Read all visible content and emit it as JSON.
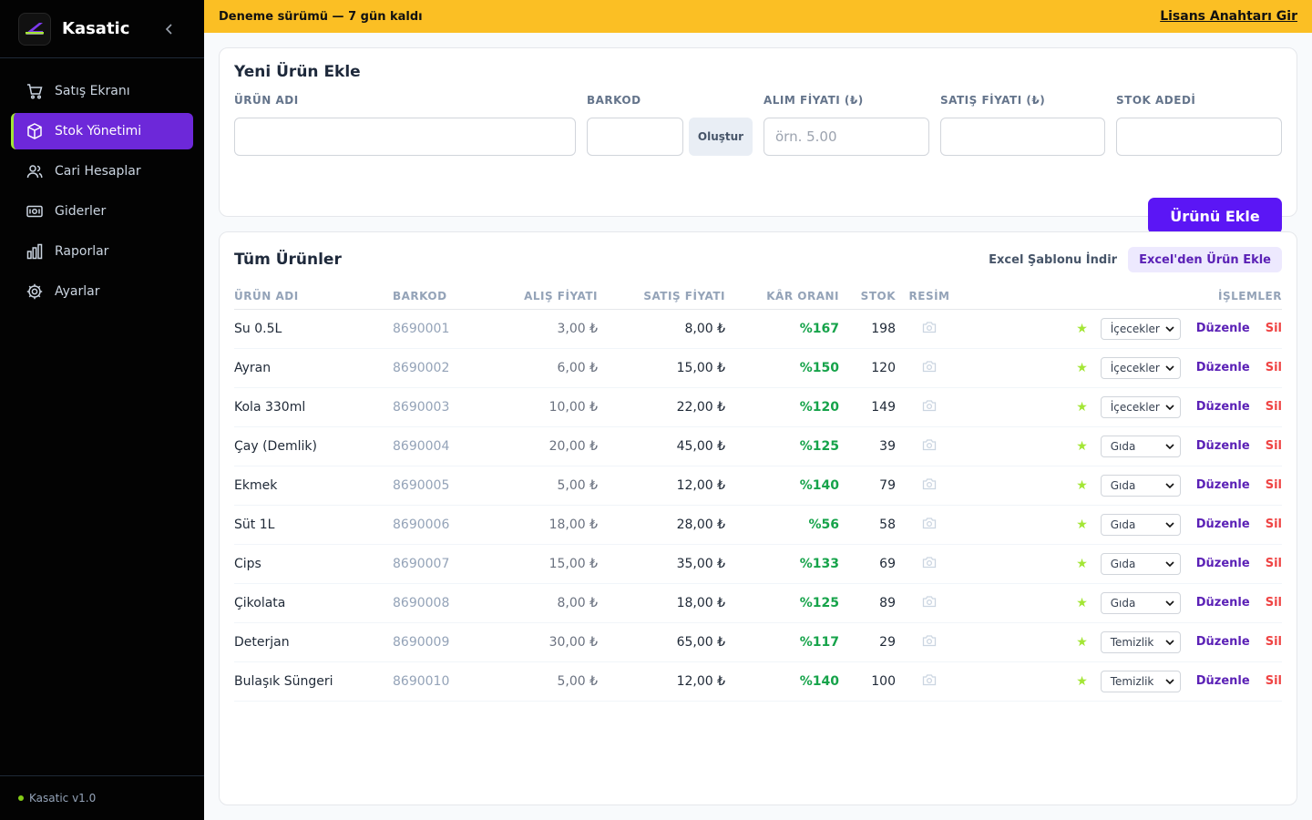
{
  "app": {
    "name": "Kasatic",
    "version": "Kasatic v1.0"
  },
  "sidebar": {
    "items": [
      {
        "label": "Satış Ekranı",
        "icon": "cart-icon",
        "active": false
      },
      {
        "label": "Stok Yönetimi",
        "icon": "box-icon",
        "active": true
      },
      {
        "label": "Cari Hesaplar",
        "icon": "users-icon",
        "active": false
      },
      {
        "label": "Giderler",
        "icon": "cash-icon",
        "active": false
      },
      {
        "label": "Raporlar",
        "icon": "chart-icon",
        "active": false
      },
      {
        "label": "Ayarlar",
        "icon": "gear-icon",
        "active": false
      }
    ]
  },
  "banner": {
    "text": "Deneme sürümü — 7 gün kaldı",
    "link": "Lisans Anahtarı Gir",
    "color": "#fbbf24"
  },
  "add_form": {
    "title": "Yeni Ürün Ekle",
    "fields": {
      "name": {
        "label": "ÜRÜN ADI",
        "placeholder": ""
      },
      "barcode": {
        "label": "BARKOD",
        "placeholder": ""
      },
      "buy": {
        "label": "ALIM FİYATI (₺)",
        "placeholder": "örn. 5.00"
      },
      "sell": {
        "label": "SATIŞ FİYATI (₺)",
        "placeholder": ""
      },
      "stock": {
        "label": "STOK ADEDİ",
        "placeholder": ""
      }
    },
    "generate_label": "Oluştur",
    "submit_label": "Ürünü Ekle"
  },
  "list": {
    "title": "Tüm Ürünler",
    "template_label": "Excel Şablonu İndir",
    "import_label": "Excel'den Ürün Ekle",
    "columns": {
      "name": "ÜRÜN ADI",
      "barcode": "BARKOD",
      "buy": "ALIŞ FİYATI",
      "sell": "SATIŞ FİYATI",
      "profit": "KÂR ORANI",
      "stock": "STOK",
      "image": "RESİM",
      "ops": "İŞLEMLER"
    },
    "edit_label": "Düzenle",
    "delete_label": "Sil",
    "rows": [
      {
        "name": "Su 0.5L",
        "barcode": "8690001",
        "buy": "3,00 ₺",
        "sell": "8,00 ₺",
        "profit": "%167",
        "stock": "198",
        "category": "İçecekler"
      },
      {
        "name": "Ayran",
        "barcode": "8690002",
        "buy": "6,00 ₺",
        "sell": "15,00 ₺",
        "profit": "%150",
        "stock": "120",
        "category": "İçecekler"
      },
      {
        "name": "Kola 330ml",
        "barcode": "8690003",
        "buy": "10,00 ₺",
        "sell": "22,00 ₺",
        "profit": "%120",
        "stock": "149",
        "category": "İçecekler"
      },
      {
        "name": "Çay (Demlik)",
        "barcode": "8690004",
        "buy": "20,00 ₺",
        "sell": "45,00 ₺",
        "profit": "%125",
        "stock": "39",
        "category": "Gıda"
      },
      {
        "name": "Ekmek",
        "barcode": "8690005",
        "buy": "5,00 ₺",
        "sell": "12,00 ₺",
        "profit": "%140",
        "stock": "79",
        "category": "Gıda"
      },
      {
        "name": "Süt 1L",
        "barcode": "8690006",
        "buy": "18,00 ₺",
        "sell": "28,00 ₺",
        "profit": "%56",
        "stock": "58",
        "category": "Gıda"
      },
      {
        "name": "Cips",
        "barcode": "8690007",
        "buy": "15,00 ₺",
        "sell": "35,00 ₺",
        "profit": "%133",
        "stock": "69",
        "category": "Gıda"
      },
      {
        "name": "Çikolata",
        "barcode": "8690008",
        "buy": "8,00 ₺",
        "sell": "18,00 ₺",
        "profit": "%125",
        "stock": "89",
        "category": "Gıda"
      },
      {
        "name": "Deterjan",
        "barcode": "8690009",
        "buy": "30,00 ₺",
        "sell": "65,00 ₺",
        "profit": "%117",
        "stock": "29",
        "category": "Temizlik"
      },
      {
        "name": "Bulaşık Süngeri",
        "barcode": "8690010",
        "buy": "5,00 ₺",
        "sell": "12,00 ₺",
        "profit": "%140",
        "stock": "100",
        "category": "Temizlik"
      }
    ]
  }
}
